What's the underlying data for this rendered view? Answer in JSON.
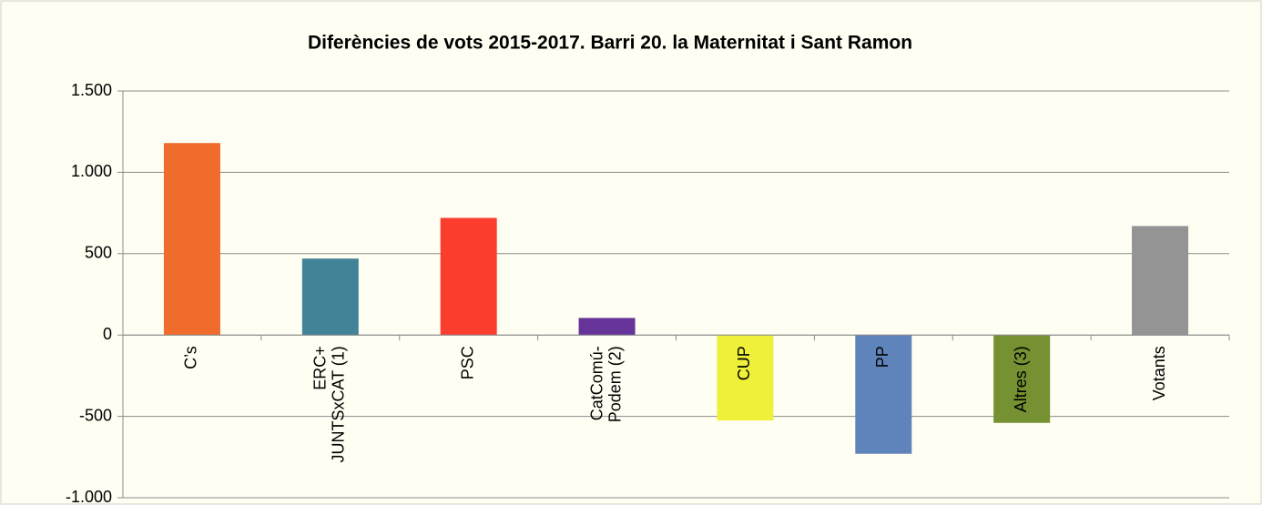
{
  "chart_data": {
    "type": "bar",
    "title": "Diferències de vots 2015-2017. Barri  20. la Maternitat i Sant Ramon",
    "categories": [
      [
        "C’s"
      ],
      [
        "ERC+",
        "JUNTSxCAT (1)"
      ],
      [
        "PSC"
      ],
      [
        "CatComú-",
        "Podem (2)"
      ],
      [
        "CUP"
      ],
      [
        "PP"
      ],
      [
        "Altres (3)"
      ],
      [
        "Votants"
      ]
    ],
    "values": [
      1180,
      470,
      720,
      105,
      -525,
      -730,
      -540,
      670
    ],
    "colors": [
      "#ef6c2d",
      "#438397",
      "#fb3d2e",
      "#663399",
      "#eef03a",
      "#5f83bb",
      "#759132",
      "#949494"
    ],
    "ylim": [
      -1000,
      1500
    ],
    "yticks": [
      {
        "value": -1000,
        "label": "-1.000"
      },
      -500,
      0,
      500,
      {
        "value": 1000,
        "label": "1.000"
      },
      {
        "value": 1500,
        "label": "1.500"
      }
    ],
    "grid": true
  }
}
